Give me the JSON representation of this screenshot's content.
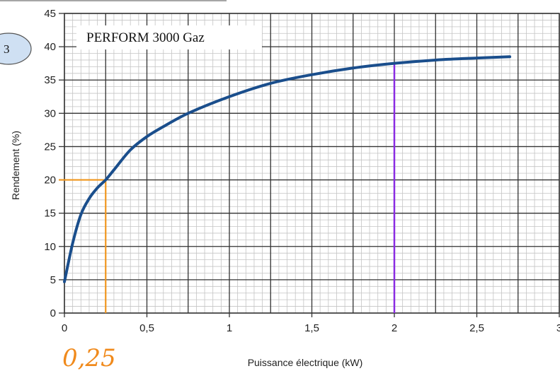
{
  "chart_data": {
    "type": "line",
    "title": "PERFORM 3000 Gaz",
    "xlabel": "Puissance électrique (kW)",
    "ylabel": "Rendement (%)",
    "xlim": [
      0,
      3
    ],
    "ylim": [
      0,
      45
    ],
    "x_ticks": [
      "0",
      "0,5",
      "1",
      "1,5",
      "2",
      "2,5",
      "3"
    ],
    "y_ticks": [
      "0",
      "5",
      "10",
      "15",
      "20",
      "25",
      "30",
      "35",
      "40",
      "45"
    ],
    "grid": "major and minor",
    "series": [
      {
        "color": "#1a4e8c",
        "x": [
          0,
          0.05,
          0.1,
          0.15,
          0.2,
          0.25,
          0.3,
          0.4,
          0.5,
          0.6,
          0.75,
          1,
          1.25,
          1.5,
          1.75,
          2,
          2.25,
          2.5,
          2.7
        ],
        "y": [
          4.7,
          10.5,
          14.8,
          17.2,
          18.8,
          20,
          21.5,
          24.5,
          26.5,
          28,
          30,
          32.5,
          34.5,
          35.8,
          36.8,
          37.5,
          38,
          38.3,
          38.5
        ]
      }
    ],
    "annotations": [
      {
        "type": "projection",
        "color": "#f0961e",
        "x": 0.25,
        "y": 20
      },
      {
        "type": "vertical-line",
        "color": "#8a2be2",
        "x": 2,
        "y_top": 37.5
      }
    ]
  },
  "badge": {
    "text": "3"
  },
  "handwritten_note": {
    "text": "0,25"
  }
}
